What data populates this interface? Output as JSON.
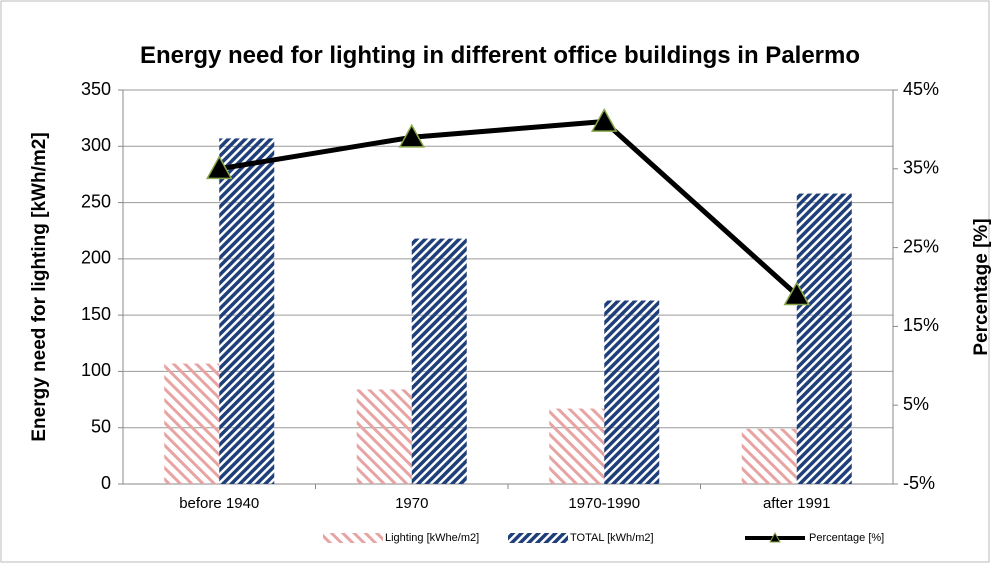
{
  "chart_data": {
    "type": "bar",
    "title": "Energy need for lighting in different office buildings in Palermo",
    "y_label": "Energy need for lighting [kWh/m2]",
    "y2_label": "Percentage [%]",
    "categories": [
      "before 1940",
      "1970",
      "1970-1990",
      "after 1991"
    ],
    "series": [
      {
        "name": "Lighting [kWhe/m2]",
        "color": "#e8a3a3",
        "values": [
          107,
          84,
          67,
          49
        ]
      },
      {
        "name": "TOTAL [kWh/m2]",
        "color": "#1f3f7a",
        "values": [
          307,
          218,
          163,
          258
        ]
      },
      {
        "name": "Percentage [%]",
        "type": "line",
        "axis": "y2",
        "color": "#000000",
        "marker_edge": "#8aa84a",
        "values": [
          35,
          39,
          41,
          19
        ]
      }
    ],
    "ylim": [
      0,
      350
    ],
    "yticks": [
      0,
      50,
      100,
      150,
      200,
      250,
      300,
      350
    ],
    "y2lim": [
      -5,
      45
    ],
    "y2ticks": [
      {
        "value": -5,
        "label": "-5%"
      },
      {
        "value": 5,
        "label": "5%"
      },
      {
        "value": 15,
        "label": "15%"
      },
      {
        "value": 25,
        "label": "25%"
      },
      {
        "value": 35,
        "label": "35%"
      },
      {
        "value": 45,
        "label": "45%"
      }
    ],
    "grid": true,
    "legend": "bottom"
  }
}
